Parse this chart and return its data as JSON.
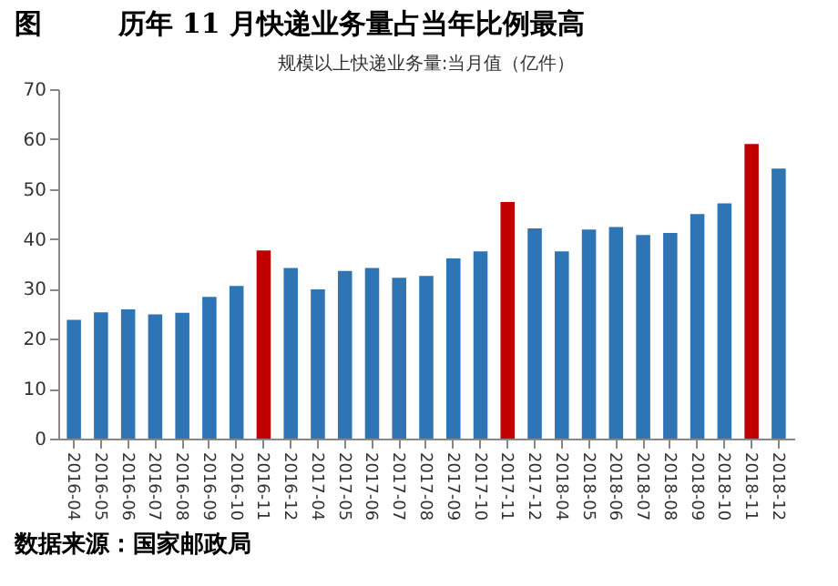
{
  "chart_data": {
    "type": "bar",
    "title": "图        历年 11 月快递业务量占当年比例最高",
    "subtitle": "规模以上快递业务量:当月值（亿件）",
    "categories": [
      "2016-04",
      "2016-05",
      "2016-06",
      "2016-07",
      "2016-08",
      "2016-09",
      "2016-10",
      "2016-11",
      "2016-12",
      "2017-04",
      "2017-05",
      "2017-06",
      "2017-07",
      "2017-08",
      "2017-09",
      "2017-10",
      "2017-11",
      "2017-12",
      "2018-04",
      "2018-05",
      "2018-06",
      "2018-07",
      "2018-08",
      "2018-09",
      "2018-10",
      "2018-11",
      "2018-12"
    ],
    "values": [
      23.8,
      25.3,
      25.9,
      24.9,
      25.2,
      28.4,
      30.6,
      37.7,
      34.2,
      29.9,
      33.6,
      34.2,
      32.2,
      32.6,
      36.1,
      37.5,
      47.4,
      42.1,
      37.5,
      41.9,
      42.4,
      40.8,
      41.2,
      45.0,
      47.1,
      59.0,
      54.1
    ],
    "colors": [
      "#2e75b6",
      "#2e75b6",
      "#2e75b6",
      "#2e75b6",
      "#2e75b6",
      "#2e75b6",
      "#2e75b6",
      "#c00000",
      "#2e75b6",
      "#2e75b6",
      "#2e75b6",
      "#2e75b6",
      "#2e75b6",
      "#2e75b6",
      "#2e75b6",
      "#2e75b6",
      "#c00000",
      "#2e75b6",
      "#2e75b6",
      "#2e75b6",
      "#2e75b6",
      "#2e75b6",
      "#2e75b6",
      "#2e75b6",
      "#2e75b6",
      "#c00000",
      "#2e75b6"
    ],
    "ylim": [
      0,
      70
    ],
    "yticks": [
      0,
      10,
      20,
      30,
      40,
      50,
      60,
      70
    ],
    "grid": false,
    "annotations": [
      "数据来源：国家邮政局"
    ]
  }
}
